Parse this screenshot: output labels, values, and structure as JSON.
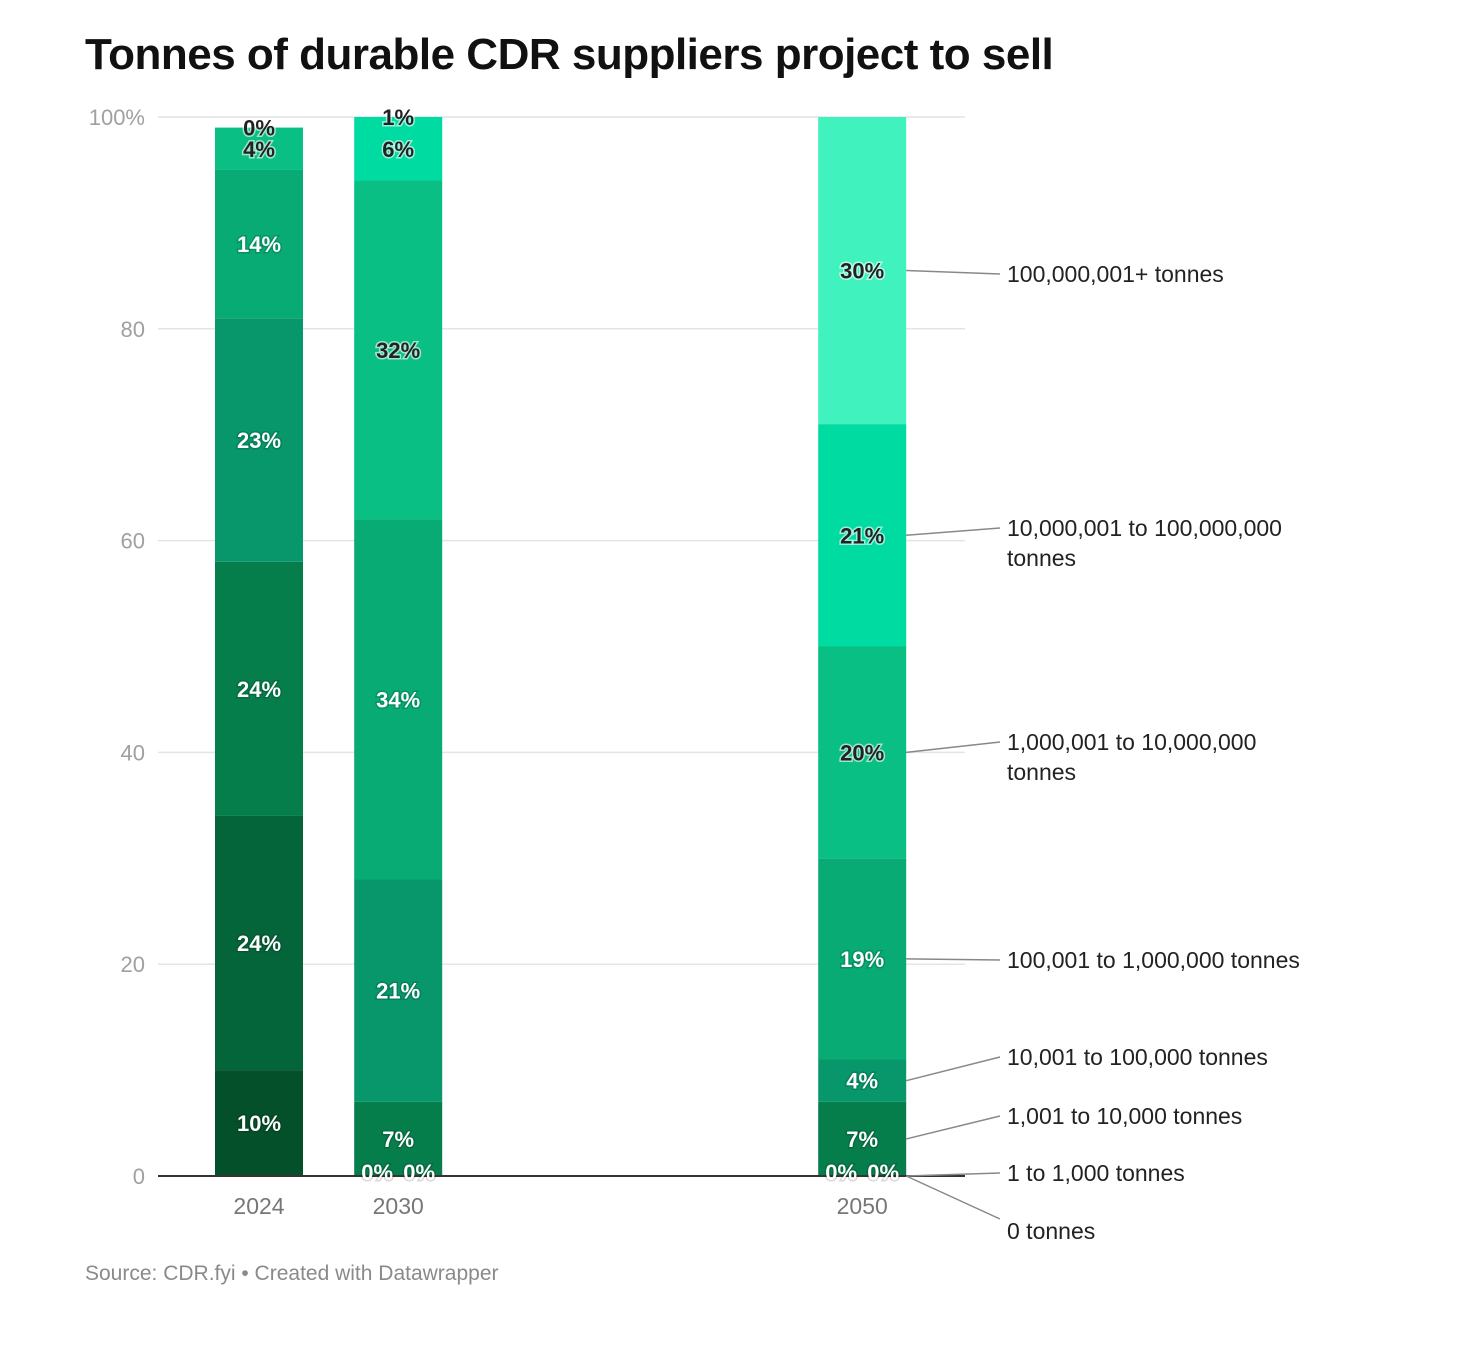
{
  "chart_data": {
    "type": "bar",
    "stacked": true,
    "title": "Tonnes of durable CDR suppliers project to sell",
    "source": "Source: CDR.fyi • Created with Datawrapper",
    "categories": [
      "2024",
      "2030",
      "2050"
    ],
    "y_ticks": [
      "0",
      "20",
      "40",
      "60",
      "80",
      "100%"
    ],
    "ylim": [
      0,
      100
    ],
    "grid": true,
    "legend_placement": "right (direct labels)",
    "series": [
      {
        "name": "0 tonnes",
        "color": "#04502a",
        "label_color": "#ffffff",
        "values": [
          10,
          0,
          0
        ]
      },
      {
        "name": "1 to 1,000 tonnes",
        "color": "#05653a",
        "label_color": "#ffffff",
        "values": [
          24,
          0,
          0
        ]
      },
      {
        "name": "1,001 to 10,000 tonnes",
        "color": "#067e4c",
        "label_color": "#ffffff",
        "values": [
          24,
          7,
          7
        ]
      },
      {
        "name": "10,001 to 100,000 tonnes",
        "color": "#08976a",
        "label_color": "#ffffff",
        "values": [
          23,
          21,
          4
        ]
      },
      {
        "name": "100,001 to 1,000,000 tonnes",
        "color": "#07ab73",
        "label_color": "#ffffff",
        "values": [
          14,
          34,
          19
        ]
      },
      {
        "name": "1,000,001 to 10,000,000 tonnes",
        "color": "#0abf83",
        "label_color": "#222222",
        "values": [
          4,
          32,
          20
        ]
      },
      {
        "name": "10,000,001 to 100,000,000 tonnes",
        "color": "#00dba2",
        "label_color": "#222222",
        "values": [
          0,
          6,
          21
        ]
      },
      {
        "name": "100,000,001+ tonnes",
        "color": "#40f2bd",
        "label_color": "#222222",
        "values": [
          null,
          1,
          30
        ]
      }
    ],
    "legend_lines": [
      [
        "0 tonnes"
      ],
      [
        "1 to 1,000 tonnes"
      ],
      [
        "1,001 to 10,000 tonnes"
      ],
      [
        "10,001 to 100,000 tonnes"
      ],
      [
        "100,001 to 1,000,000 tonnes"
      ],
      [
        "1,000,001 to 10,000,000",
        "tonnes"
      ],
      [
        "10,000,001 to 100,000,000",
        "tonnes"
      ],
      [
        "100,000,001+ tonnes"
      ]
    ]
  }
}
